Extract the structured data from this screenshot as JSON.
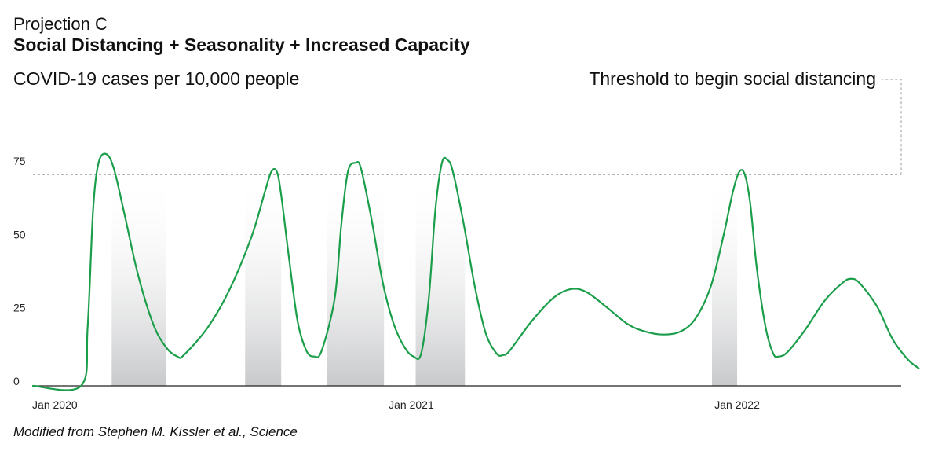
{
  "header": {
    "pretitle": "Projection C",
    "title": "Social Distancing + Seasonality + Increased Capacity"
  },
  "source": "Modified from Stephen M. Kissler et al., Science",
  "chart_data": {
    "type": "line",
    "title": "Social Distancing + Seasonality + Increased Capacity",
    "subtitle": "Projection C",
    "ylabel": "COVID-19 cases per 10,000 people",
    "xlabel": "",
    "ylim": [
      0,
      90
    ],
    "xlim": [
      0,
      39.7
    ],
    "x_unit": "months since Jan 2020 (approx.)",
    "yticks": [
      0,
      25,
      50,
      75
    ],
    "xticks": [
      {
        "label": "Jan 2020",
        "x": 1.0
      },
      {
        "label": "Jan 2021",
        "x": 17.3
      },
      {
        "label": "Jan 2022",
        "x": 32.2
      }
    ],
    "threshold": {
      "label": "Threshold to begin social distancing",
      "value": 72
    },
    "series": [
      {
        "name": "COVID-19 cases",
        "color": "#1a9e4a",
        "points": [
          [
            0.0,
            0
          ],
          [
            2.2,
            0
          ],
          [
            2.5,
            20
          ],
          [
            2.75,
            60
          ],
          [
            3.0,
            76
          ],
          [
            3.35,
            79
          ],
          [
            3.7,
            74
          ],
          [
            4.2,
            58
          ],
          [
            4.8,
            38
          ],
          [
            5.5,
            21
          ],
          [
            6.1,
            13
          ],
          [
            6.6,
            10
          ],
          [
            6.9,
            10.5
          ],
          [
            8.0,
            20
          ],
          [
            9.0,
            33
          ],
          [
            10.0,
            51
          ],
          [
            10.6,
            66
          ],
          [
            10.9,
            73
          ],
          [
            11.15,
            73
          ],
          [
            11.35,
            65
          ],
          [
            11.7,
            44
          ],
          [
            12.1,
            22
          ],
          [
            12.5,
            12
          ],
          [
            12.85,
            10
          ],
          [
            13.2,
            12
          ],
          [
            13.8,
            30
          ],
          [
            14.1,
            55
          ],
          [
            14.4,
            73
          ],
          [
            14.75,
            76
          ],
          [
            15.0,
            74
          ],
          [
            15.5,
            56
          ],
          [
            16.0,
            35
          ],
          [
            16.5,
            21
          ],
          [
            17.0,
            13
          ],
          [
            17.4,
            10
          ],
          [
            17.75,
            11
          ],
          [
            18.1,
            30
          ],
          [
            18.4,
            60
          ],
          [
            18.7,
            76
          ],
          [
            18.95,
            77
          ],
          [
            19.2,
            73
          ],
          [
            19.7,
            55
          ],
          [
            20.2,
            34
          ],
          [
            20.7,
            18
          ],
          [
            21.2,
            11
          ],
          [
            21.5,
            10.5
          ],
          [
            21.8,
            12
          ],
          [
            22.8,
            22
          ],
          [
            23.8,
            30
          ],
          [
            24.6,
            33
          ],
          [
            25.3,
            32
          ],
          [
            26.2,
            27
          ],
          [
            27.2,
            21
          ],
          [
            28.0,
            18.5
          ],
          [
            28.8,
            17.5
          ],
          [
            29.6,
            18.5
          ],
          [
            30.3,
            23
          ],
          [
            31.0,
            34
          ],
          [
            31.6,
            52
          ],
          [
            32.0,
            66
          ],
          [
            32.3,
            73
          ],
          [
            32.55,
            72
          ],
          [
            32.8,
            62
          ],
          [
            33.1,
            40
          ],
          [
            33.5,
            20
          ],
          [
            33.85,
            11
          ],
          [
            34.1,
            10
          ],
          [
            34.5,
            11.5
          ],
          [
            35.3,
            19
          ],
          [
            36.2,
            29
          ],
          [
            37.0,
            35
          ],
          [
            37.4,
            36.5
          ],
          [
            37.8,
            35
          ],
          [
            38.6,
            27
          ],
          [
            39.3,
            16
          ],
          [
            40.0,
            9
          ],
          [
            40.5,
            6
          ]
        ]
      }
    ],
    "shaded_periods": [
      {
        "name": "social distancing",
        "start": 3.6,
        "end": 6.1
      },
      {
        "name": "social distancing",
        "start": 9.7,
        "end": 11.35
      },
      {
        "name": "social distancing",
        "start": 13.45,
        "end": 16.05
      },
      {
        "name": "social distancing",
        "start": 17.5,
        "end": 19.75
      },
      {
        "name": "social distancing",
        "start": 31.05,
        "end": 32.2
      }
    ],
    "colors": {
      "line": "#1a9e4a",
      "shade": "#c8c9cb",
      "axis": "#222222",
      "threshold": "#9a9a9a"
    }
  }
}
